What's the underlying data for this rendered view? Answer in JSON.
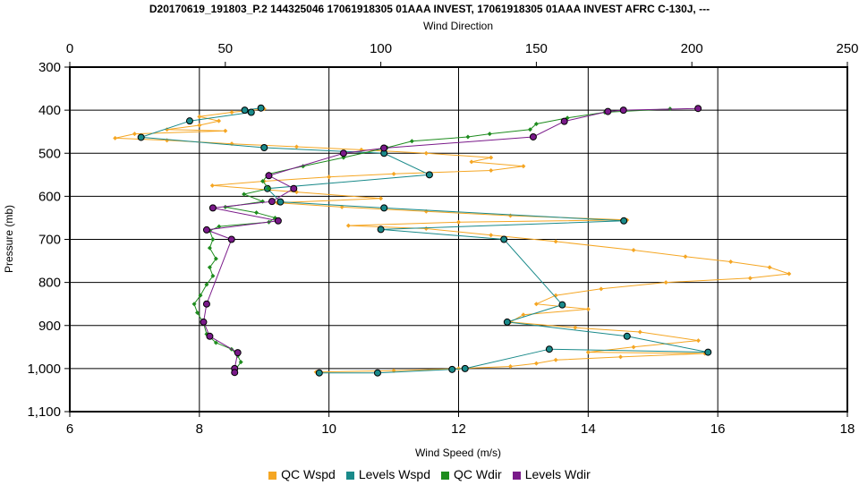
{
  "title": "D20170619_191803_P.2 144325046 17061918305 01AAA INVEST, 17061918305 01AAA INVEST AFRC C-130J, ---",
  "chart_data": {
    "type": "scatter",
    "x_bottom": {
      "label": "Wind Speed (m/s)",
      "range": [
        6,
        18
      ],
      "ticks": [
        "6",
        "8",
        "10",
        "12",
        "14",
        "16",
        "18"
      ]
    },
    "x_top": {
      "label": "Wind Direction",
      "range": [
        0,
        250
      ],
      "ticks": [
        "0",
        "50",
        "100",
        "150",
        "200",
        "250"
      ]
    },
    "y": {
      "label": "Pressure (mb)",
      "range": [
        300,
        1100
      ],
      "inverted": true,
      "ticks": [
        "300",
        "400",
        "500",
        "600",
        "700",
        "800",
        "900",
        "1,000",
        "1,100"
      ]
    },
    "grid": true,
    "legend_position": "bottom",
    "series": [
      {
        "name": "QC Wspd",
        "axis": "bottom",
        "color": "#f5a623",
        "marker": "diamond",
        "points": [
          [
            9.0,
            397
          ],
          [
            8.5,
            405
          ],
          [
            8.0,
            415
          ],
          [
            8.3,
            425
          ],
          [
            8.0,
            435
          ],
          [
            7.5,
            445
          ],
          [
            8.4,
            448
          ],
          [
            7.0,
            455
          ],
          [
            6.7,
            465
          ],
          [
            7.5,
            470
          ],
          [
            8.5,
            478
          ],
          [
            9.5,
            485
          ],
          [
            10.5,
            492
          ],
          [
            11.5,
            500
          ],
          [
            12.5,
            510
          ],
          [
            12.2,
            520
          ],
          [
            13.0,
            530
          ],
          [
            12.5,
            540
          ],
          [
            11.0,
            548
          ],
          [
            10.0,
            555
          ],
          [
            9.0,
            565
          ],
          [
            8.2,
            575
          ],
          [
            9.5,
            590
          ],
          [
            10.8,
            605
          ],
          [
            9.2,
            615
          ],
          [
            10.2,
            625
          ],
          [
            11.5,
            635
          ],
          [
            12.8,
            645
          ],
          [
            14.6,
            655
          ],
          [
            12.0,
            660
          ],
          [
            10.3,
            668
          ],
          [
            11.5,
            675
          ],
          [
            12.5,
            690
          ],
          [
            13.5,
            705
          ],
          [
            14.7,
            725
          ],
          [
            15.5,
            740
          ],
          [
            16.2,
            752
          ],
          [
            16.8,
            765
          ],
          [
            17.1,
            780
          ],
          [
            16.5,
            790
          ],
          [
            15.2,
            800
          ],
          [
            14.2,
            815
          ],
          [
            13.5,
            830
          ],
          [
            13.2,
            850
          ],
          [
            14.0,
            862
          ],
          [
            13.0,
            875
          ],
          [
            12.8,
            892
          ],
          [
            13.8,
            905
          ],
          [
            14.8,
            915
          ],
          [
            15.7,
            935
          ],
          [
            14.7,
            950
          ],
          [
            14.0,
            962
          ],
          [
            15.8,
            965
          ],
          [
            14.5,
            973
          ],
          [
            13.5,
            980
          ],
          [
            13.2,
            988
          ],
          [
            12.8,
            995
          ],
          [
            12.0,
            1000
          ],
          [
            11.0,
            1005
          ],
          [
            9.8,
            1008
          ]
        ]
      },
      {
        "name": "Levels Wspd",
        "axis": "bottom",
        "color": "#1a8a8a",
        "marker": "circle",
        "points": [
          [
            8.95,
            395
          ],
          [
            8.7,
            400
          ],
          [
            8.8,
            405
          ],
          [
            7.85,
            425
          ],
          [
            7.1,
            463
          ],
          [
            9.0,
            487
          ],
          [
            10.85,
            500
          ],
          [
            11.55,
            550
          ],
          [
            9.05,
            582
          ],
          [
            9.25,
            613
          ],
          [
            10.85,
            627
          ],
          [
            14.55,
            657
          ],
          [
            10.8,
            677
          ],
          [
            12.7,
            700
          ],
          [
            13.6,
            852
          ],
          [
            12.75,
            892
          ],
          [
            14.6,
            925
          ],
          [
            15.85,
            962
          ],
          [
            13.4,
            955
          ],
          [
            12.1,
            1000
          ],
          [
            11.9,
            1002
          ],
          [
            10.75,
            1010
          ],
          [
            9.85,
            1010
          ]
        ]
      },
      {
        "name": "QC Wdir",
        "axis": "top",
        "color": "#1e8c1e",
        "marker": "diamond",
        "points": [
          [
            193,
            397
          ],
          [
            172,
            405
          ],
          [
            160,
            418
          ],
          [
            150,
            432
          ],
          [
            148,
            445
          ],
          [
            135,
            455
          ],
          [
            128,
            462
          ],
          [
            110,
            472
          ],
          [
            102,
            487
          ],
          [
            88,
            510
          ],
          [
            75,
            530
          ],
          [
            64,
            548
          ],
          [
            62,
            565
          ],
          [
            64,
            582
          ],
          [
            56,
            595
          ],
          [
            62,
            612
          ],
          [
            50,
            625
          ],
          [
            60,
            638
          ],
          [
            66,
            650
          ],
          [
            64,
            660
          ],
          [
            48,
            670
          ],
          [
            45,
            680
          ],
          [
            46,
            700
          ],
          [
            45,
            720
          ],
          [
            47,
            745
          ],
          [
            45,
            765
          ],
          [
            46,
            785
          ],
          [
            44,
            805
          ],
          [
            42,
            830
          ],
          [
            40,
            850
          ],
          [
            41,
            870
          ],
          [
            43,
            895
          ],
          [
            44,
            920
          ],
          [
            47,
            940
          ],
          [
            52,
            955
          ],
          [
            54,
            970
          ],
          [
            55,
            985
          ],
          [
            53,
            1005
          ]
        ]
      },
      {
        "name": "Levels Wdir",
        "axis": "top",
        "color": "#7a1a8a",
        "marker": "circle",
        "points": [
          [
            202,
            396
          ],
          [
            178,
            400
          ],
          [
            173,
            403
          ],
          [
            159,
            426
          ],
          [
            149,
            462
          ],
          [
            101,
            488
          ],
          [
            88,
            500
          ],
          [
            64,
            552
          ],
          [
            72,
            582
          ],
          [
            65,
            612
          ],
          [
            46,
            627
          ],
          [
            67,
            657
          ],
          [
            44,
            678
          ],
          [
            52,
            700
          ],
          [
            44,
            850
          ],
          [
            43,
            892
          ],
          [
            45,
            925
          ],
          [
            54,
            963
          ],
          [
            53,
            1000
          ],
          [
            53,
            1009
          ]
        ]
      }
    ]
  }
}
